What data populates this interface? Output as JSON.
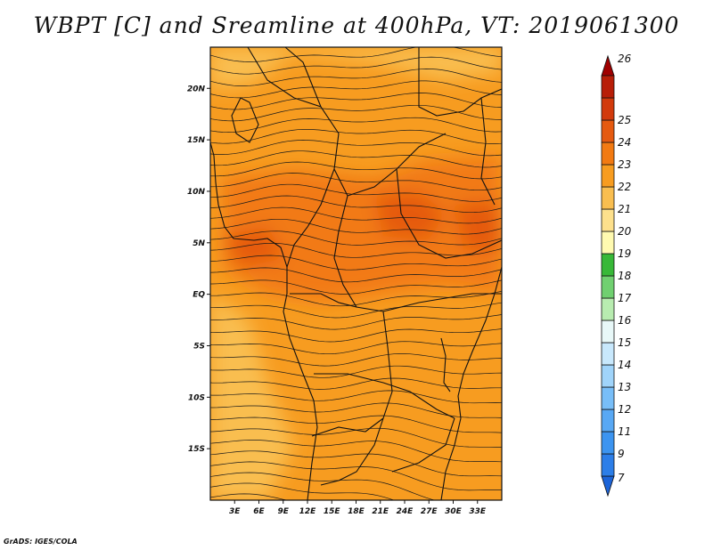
{
  "title": "WBPT [C] and Sreamline at 400hPa, VT: 2019061300",
  "footer": "GrADS: IGES/COLA",
  "map": {
    "variable": "WBPT [C]",
    "overlay": "Streamline",
    "level": "400hPa",
    "valid_time": "2019061300",
    "lon_range": [
      0,
      36
    ],
    "lat_range": [
      -20,
      24
    ],
    "lon_ticks": [
      {
        "value": 3,
        "label": "3E"
      },
      {
        "value": 6,
        "label": "6E"
      },
      {
        "value": 9,
        "label": "9E"
      },
      {
        "value": 12,
        "label": "12E"
      },
      {
        "value": 15,
        "label": "15E"
      },
      {
        "value": 18,
        "label": "18E"
      },
      {
        "value": 21,
        "label": "21E"
      },
      {
        "value": 24,
        "label": "24E"
      },
      {
        "value": 27,
        "label": "27E"
      },
      {
        "value": 30,
        "label": "30E"
      },
      {
        "value": 33,
        "label": "33E"
      }
    ],
    "lat_ticks": [
      {
        "value": 20,
        "label": "20N"
      },
      {
        "value": 15,
        "label": "15N"
      },
      {
        "value": 10,
        "label": "10N"
      },
      {
        "value": 5,
        "label": "5N"
      },
      {
        "value": 0,
        "label": "EQ"
      },
      {
        "value": -5,
        "label": "5S"
      },
      {
        "value": -10,
        "label": "10S"
      },
      {
        "value": -15,
        "label": "15S"
      }
    ]
  },
  "colorbar": {
    "labels": [
      "7",
      "9",
      "11",
      "12",
      "13",
      "14",
      "15",
      "16",
      "17",
      "18",
      "19",
      "20",
      "21",
      "22",
      "23",
      "24",
      "25",
      "26"
    ],
    "colors": [
      "#1c64d8",
      "#2c7ee8",
      "#3c94f0",
      "#58a8f4",
      "#78bef8",
      "#a0d4fa",
      "#c8e8fc",
      "#e8f8f8",
      "#b8ecb0",
      "#70d070",
      "#38b838",
      "#fffab0",
      "#fde08c",
      "#f9be50",
      "#f79c20",
      "#f27a12",
      "#e55a10",
      "#d23a0c",
      "#b81e08",
      "#a00000"
    ]
  },
  "colors": {
    "field_low": "#f9be50",
    "field_mid": "#f79c20",
    "field_high": "#f27a12",
    "field_peak": "#e55a10",
    "field_cool": "#fde08c",
    "streamline": "#1a1a1a"
  }
}
